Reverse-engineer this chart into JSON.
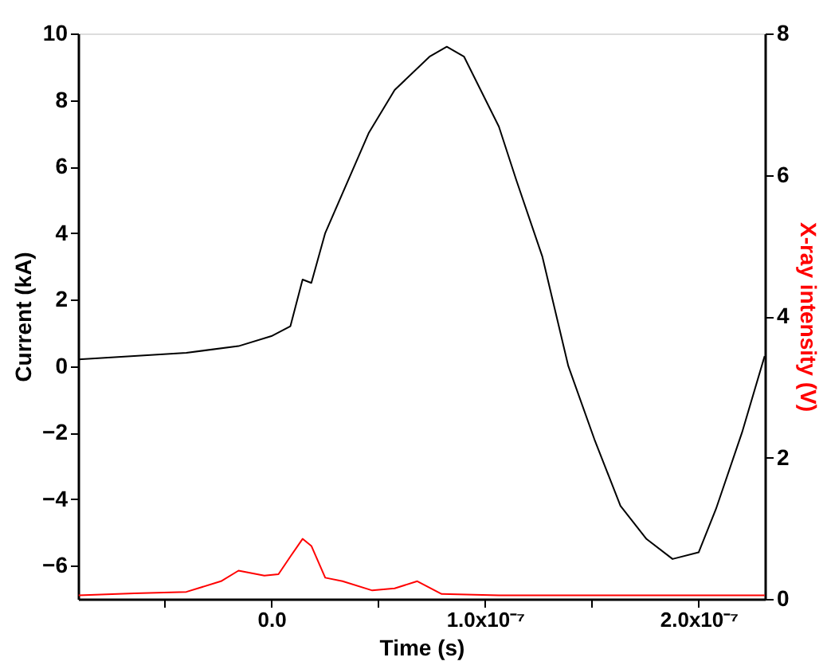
{
  "chart_data": {
    "type": "line",
    "xlabel": "Time (s)",
    "ylabel": "Current (kA)",
    "y2label": "X-ray intensity (V)",
    "xlim": [
      -9.05e-08,
      2.31e-07
    ],
    "xticks": [
      {
        "value": -5e-08,
        "label": null
      },
      {
        "value": 0,
        "label": "0.0"
      },
      {
        "value": 5e-08,
        "label": null
      },
      {
        "value": 1e-07,
        "label": "1.0x10⁻⁷"
      },
      {
        "value": 1.5e-07,
        "label": null
      },
      {
        "value": 2e-07,
        "label": "2.0x10⁻⁷"
      }
    ],
    "ylim": [
      -7,
      10
    ],
    "yticks": [
      -6,
      -4,
      -2,
      0,
      2,
      4,
      6,
      8,
      10
    ],
    "y2lim": [
      0,
      8
    ],
    "y2ticks": [
      0,
      2,
      4,
      6,
      8
    ],
    "grid": false,
    "marker": "none",
    "line_style": "solid",
    "series": [
      {
        "color": "#000000",
        "x": [
          -9.02e-08,
          -6.42e-08,
          -3.98e-08,
          -1.54e-08,
          0,
          8.9e-09,
          1.46e-08,
          1.87e-08,
          2.52e-08,
          3.74e-08,
          4.55e-08,
          5.77e-08,
          7.4e-08,
          8.21e-08,
          9.02e-08,
          1.065e-07,
          1.146e-07,
          1.268e-07,
          1.39e-07,
          1.512e-07,
          1.634e-07,
          1.756e-07,
          1.878e-07,
          2e-07,
          2.081e-07,
          2.203e-07,
          2.309e-07
        ],
        "values": [
          0.2,
          0.3,
          0.4,
          0.6,
          0.9,
          1.2,
          2.6,
          2.5,
          4.0,
          5.8,
          7.0,
          8.3,
          9.3,
          9.6,
          9.3,
          7.2,
          5.6,
          3.3,
          0,
          -2.2,
          -4.2,
          -5.2,
          -5.8,
          -5.6,
          -4.3,
          -2.0,
          0.3
        ]
      },
      {
        "color": "#ff0000",
        "axis": "y2",
        "x": [
          -9.02e-08,
          -6.42e-08,
          -3.98e-08,
          -2.36e-08,
          -1.54e-08,
          -3.3e-09,
          3.3e-09,
          8.9e-09,
          1.46e-08,
          1.87e-08,
          2.52e-08,
          3.33e-08,
          4.72e-08,
          5.77e-08,
          6.83e-08,
          7.97e-08,
          1.065e-07,
          1.634e-07,
          2.309e-07
        ],
        "values": [
          0.05,
          0.08,
          0.1,
          0.25,
          0.4,
          0.33,
          0.35,
          0.6,
          0.85,
          0.75,
          0.3,
          0.25,
          0.12,
          0.15,
          0.25,
          0.07,
          0.05,
          0.05,
          0.05
        ]
      }
    ]
  }
}
